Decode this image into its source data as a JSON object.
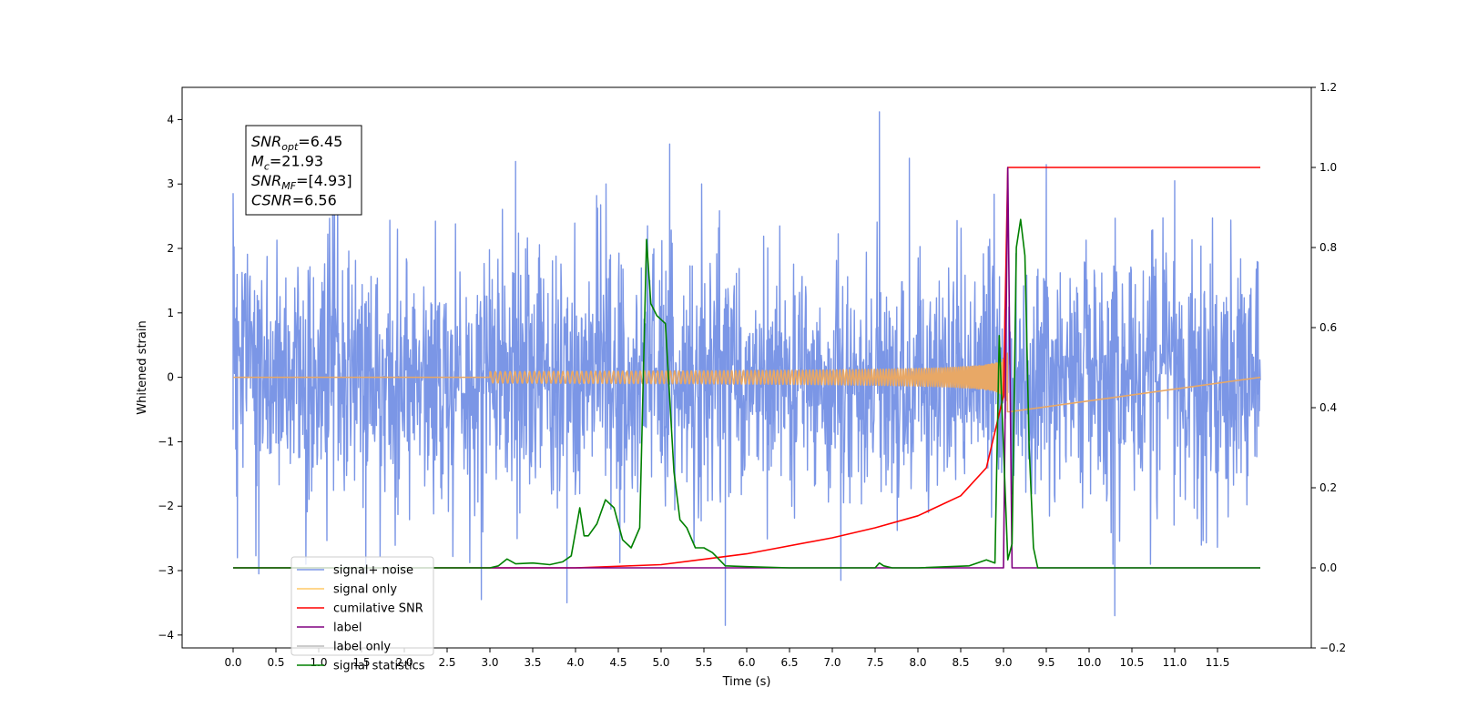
{
  "chart_data": {
    "type": "line",
    "xlabel": "Time (s)",
    "ylabel": "Whitened strain",
    "xlim": [
      -0.6,
      12.5
    ],
    "ylim": [
      -4.2,
      4.5
    ],
    "y2lim": [
      -0.2,
      1.2
    ],
    "x_ticks": [
      "0.0",
      "0.5",
      "1.0",
      "1.5",
      "2.0",
      "2.5",
      "3.0",
      "3.5",
      "4.0",
      "4.5",
      "5.0",
      "5.5",
      "6.0",
      "6.5",
      "7.0",
      "7.5",
      "8.0",
      "8.5",
      "9.0",
      "9.5",
      "10.0",
      "10.5",
      "11.0",
      "11.5"
    ],
    "y_ticks": [
      "4",
      "3",
      "2",
      "1",
      "0",
      "−1",
      "−2",
      "−3",
      "−4"
    ],
    "y2_ticks": [
      "1.2",
      "1.0",
      "0.8",
      "0.6",
      "0.4",
      "0.2",
      "0.0",
      "−0.2"
    ],
    "grid": false,
    "legend_position": "lower-left",
    "legend": [
      {
        "label": "signal+ noise",
        "color": "#7b96e6"
      },
      {
        "label": "signal only",
        "color": "#ffc866"
      },
      {
        "label": "cumilative SNR",
        "color": "#ff0000"
      },
      {
        "label": "label",
        "color": "#800080"
      },
      {
        "label": "label only",
        "color": "#bbbbbb"
      },
      {
        "label": "signal statistics",
        "color": "#008000"
      }
    ],
    "annotation": {
      "lines": [
        {
          "name": "SNR",
          "sub": "opt",
          "value": "=6.45"
        },
        {
          "name": "M",
          "sub": "c",
          "value": "=21.93"
        },
        {
          "name": "SNR",
          "sub": "MF",
          "value": "=[4.93]"
        },
        {
          "name": "CSNR",
          "sub": "",
          "value": "=6.56"
        }
      ]
    },
    "series": [
      {
        "name": "signal+ noise",
        "axis": "left",
        "color": "#7b96e6",
        "description_x_range": [
          0,
          12
        ],
        "noise_std": 0.95,
        "spikes": [
          [
            0.0,
            2.85
          ],
          [
            0.05,
            -2.8
          ],
          [
            0.3,
            -3.05
          ],
          [
            1.55,
            -3.05
          ],
          [
            2.9,
            -3.45
          ],
          [
            3.3,
            3.35
          ],
          [
            3.9,
            -3.5
          ],
          [
            5.1,
            3.62
          ],
          [
            5.75,
            -3.85
          ],
          [
            7.1,
            -3.15
          ],
          [
            7.55,
            4.12
          ],
          [
            7.9,
            3.4
          ],
          [
            9.5,
            3.3
          ],
          [
            10.3,
            -3.7
          ],
          [
            11.0,
            3.05
          ]
        ]
      },
      {
        "name": "signal only",
        "axis": "left",
        "color": "#e8a866",
        "merger_time": 9.05,
        "peak_amplitude": 0.55
      },
      {
        "name": "cumilative SNR",
        "axis": "right",
        "color": "#ff0000",
        "x": [
          0.0,
          4.0,
          5.0,
          6.0,
          7.0,
          7.5,
          8.0,
          8.5,
          8.8,
          9.0,
          9.05,
          12.0
        ],
        "y": [
          0.0,
          0.0,
          0.008,
          0.035,
          0.075,
          0.1,
          0.13,
          0.18,
          0.25,
          0.43,
          1.0,
          1.0
        ]
      },
      {
        "name": "label",
        "axis": "right",
        "color": "#800080",
        "x": [
          0.0,
          9.0,
          9.05,
          9.1,
          12.0
        ],
        "y": [
          0.0,
          0.0,
          1.0,
          0.0,
          0.0
        ]
      },
      {
        "name": "signal statistics",
        "axis": "right",
        "color": "#008000",
        "x": [
          0.0,
          3.0,
          3.1,
          3.2,
          3.3,
          3.5,
          3.7,
          3.85,
          3.95,
          4.05,
          4.1,
          4.15,
          4.25,
          4.35,
          4.45,
          4.55,
          4.65,
          4.75,
          4.83,
          4.88,
          4.95,
          5.05,
          5.15,
          5.22,
          5.3,
          5.4,
          5.5,
          5.6,
          5.75,
          6.0,
          6.5,
          7.5,
          7.55,
          7.6,
          7.7,
          8.0,
          8.6,
          8.8,
          8.9,
          8.95,
          9.0,
          9.05,
          9.1,
          9.15,
          9.2,
          9.25,
          9.3,
          9.35,
          9.4,
          9.45,
          12.0
        ],
        "y": [
          0.0,
          0.0,
          0.005,
          0.022,
          0.01,
          0.012,
          0.008,
          0.015,
          0.03,
          0.15,
          0.08,
          0.08,
          0.11,
          0.17,
          0.15,
          0.07,
          0.05,
          0.1,
          0.82,
          0.66,
          0.63,
          0.61,
          0.24,
          0.12,
          0.1,
          0.05,
          0.05,
          0.038,
          0.005,
          0.003,
          0.0,
          0.0,
          0.012,
          0.005,
          0.0,
          0.0,
          0.005,
          0.02,
          0.012,
          0.58,
          0.3,
          0.02,
          0.06,
          0.8,
          0.87,
          0.78,
          0.3,
          0.05,
          0.0,
          0.0,
          0.0
        ]
      }
    ]
  }
}
